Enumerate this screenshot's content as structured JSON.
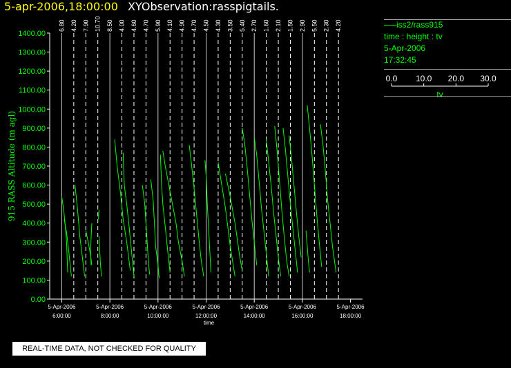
{
  "header": {
    "date_time": "5-apr-2006,18:00:00",
    "observation": "XYObservation:rasspigtails."
  },
  "legend": {
    "series_name": "iss2/rass915",
    "axes_desc": "time : height : tv",
    "date": "5-Apr-2006",
    "time": "17:32:45",
    "scale_ticks": [
      "0.0",
      "10.0",
      "20.0",
      "30.0"
    ],
    "scale_label": "tv"
  },
  "notice": "REAL-TIME DATA, NOT CHECKED FOR QUALITY",
  "colors": {
    "axis": "#ffffff",
    "trace": "#00ff00",
    "grid": "#ffffff",
    "label": "#00ff00"
  },
  "chart_data": {
    "type": "line",
    "ylabel": "915 RASS Altitude (m agl)",
    "xlabel": "time",
    "ylim": [
      0,
      1400
    ],
    "xlim_hours": [
      5.5,
      18.5
    ],
    "y_ticks": [
      "0.00",
      "100.00",
      "200.00",
      "300.00",
      "400.00",
      "500.00",
      "600.00",
      "700.00",
      "800.00",
      "900.00",
      "1000.00",
      "1100.00",
      "1200.00",
      "1300.00",
      "1400.00"
    ],
    "x_ticks": [
      {
        "hour": 6,
        "date": "5-Apr-2006",
        "time": "6:00:00"
      },
      {
        "hour": 8,
        "date": "5-Apr-2006",
        "time": "8:00:00"
      },
      {
        "hour": 10,
        "date": "5-Apr-2006",
        "time": "10:00:00"
      },
      {
        "hour": 12,
        "date": "5-Apr-2006",
        "time": "12:00:00"
      },
      {
        "hour": 14,
        "date": "5-Apr-2006",
        "time": "14:00:00"
      },
      {
        "hour": 16,
        "date": "5-Apr-2006",
        "time": "16:00:00"
      },
      {
        "hour": 18,
        "date": "5-Apr-2006",
        "time": "18:00:00"
      }
    ],
    "profiles": [
      {
        "hour": 6.0,
        "label": "6.80"
      },
      {
        "hour": 6.5,
        "label": "4.20"
      },
      {
        "hour": 7.0,
        "label": "7.90"
      },
      {
        "hour": 7.5,
        "label": "10.70"
      },
      {
        "hour": 8.0,
        "label": "8.50"
      },
      {
        "hour": 8.5,
        "label": "4.00"
      },
      {
        "hour": 9.0,
        "label": "4.60"
      },
      {
        "hour": 9.5,
        "label": "4.70"
      },
      {
        "hour": 10.0,
        "label": "5.90"
      },
      {
        "hour": 10.5,
        "label": "4.10"
      },
      {
        "hour": 11.0,
        "label": "4.90"
      },
      {
        "hour": 11.5,
        "label": "4.70"
      },
      {
        "hour": 12.0,
        "label": "4.50"
      },
      {
        "hour": 12.5,
        "label": "4.30"
      },
      {
        "hour": 13.0,
        "label": "3.50"
      },
      {
        "hour": 13.5,
        "label": "5.40"
      },
      {
        "hour": 14.0,
        "label": "2.70"
      },
      {
        "hour": 14.5,
        "label": "1.60"
      },
      {
        "hour": 15.0,
        "label": "2.10"
      },
      {
        "hour": 15.5,
        "label": "1.50"
      },
      {
        "hour": 16.0,
        "label": "2.90"
      },
      {
        "hour": 16.5,
        "label": "5.50"
      },
      {
        "hour": 17.0,
        "label": "2.30"
      },
      {
        "hour": 17.5,
        "label": "4.20"
      }
    ],
    "traces": [
      [
        [
          6.0,
          540
        ],
        [
          6.08,
          470
        ],
        [
          6.15,
          380
        ],
        [
          6.2,
          300
        ],
        [
          6.23,
          200
        ],
        [
          6.25,
          140
        ]
      ],
      [
        [
          6.1,
          420
        ],
        [
          6.2,
          350
        ],
        [
          6.3,
          240
        ],
        [
          6.4,
          120
        ]
      ],
      [
        [
          6.55,
          600
        ],
        [
          6.65,
          480
        ],
        [
          6.75,
          330
        ],
        [
          6.85,
          230
        ],
        [
          6.95,
          120
        ]
      ],
      [
        [
          7.0,
          360
        ],
        [
          7.1,
          300
        ],
        [
          7.2,
          230
        ],
        [
          7.25,
          180
        ]
      ],
      [
        [
          7.25,
          400
        ],
        [
          7.22,
          320
        ],
        [
          7.2,
          250
        ],
        [
          7.22,
          180
        ]
      ],
      [
        [
          7.55,
          330
        ],
        [
          7.6,
          200
        ],
        [
          7.65,
          120
        ]
      ],
      [
        [
          7.55,
          470
        ],
        [
          7.53,
          420
        ]
      ],
      [
        [
          8.2,
          840
        ],
        [
          8.3,
          700
        ],
        [
          8.45,
          550
        ],
        [
          8.55,
          420
        ],
        [
          8.7,
          300
        ],
        [
          8.85,
          150
        ]
      ],
      [
        [
          8.55,
          770
        ],
        [
          8.6,
          600
        ],
        [
          8.7,
          500
        ],
        [
          8.8,
          380
        ],
        [
          8.9,
          250
        ],
        [
          9.0,
          120
        ]
      ],
      [
        [
          9.35,
          600
        ],
        [
          9.45,
          500
        ],
        [
          9.5,
          400
        ],
        [
          9.55,
          300
        ],
        [
          9.6,
          200
        ],
        [
          9.65,
          130
        ]
      ],
      [
        [
          9.7,
          630
        ],
        [
          9.8,
          520
        ],
        [
          9.85,
          400
        ],
        [
          9.9,
          280
        ],
        [
          10.0,
          180
        ],
        [
          10.05,
          110
        ]
      ],
      [
        [
          10.1,
          760
        ],
        [
          10.15,
          600
        ],
        [
          10.2,
          500
        ],
        [
          10.3,
          380
        ],
        [
          10.4,
          260
        ],
        [
          10.5,
          140
        ]
      ],
      [
        [
          10.2,
          780
        ],
        [
          10.3,
          700
        ],
        [
          10.45,
          600
        ],
        [
          10.6,
          500
        ],
        [
          10.75,
          400
        ],
        [
          10.85,
          300
        ],
        [
          11.0,
          200
        ],
        [
          11.1,
          120
        ]
      ],
      [
        [
          11.3,
          810
        ],
        [
          11.4,
          700
        ],
        [
          11.5,
          580
        ],
        [
          11.6,
          450
        ],
        [
          11.7,
          320
        ],
        [
          11.8,
          200
        ],
        [
          11.9,
          120
        ]
      ],
      [
        [
          11.95,
          730
        ],
        [
          12.0,
          650
        ],
        [
          12.05,
          500
        ],
        [
          12.1,
          380
        ],
        [
          12.15,
          260
        ],
        [
          12.2,
          140
        ]
      ],
      [
        [
          12.5,
          720
        ],
        [
          12.6,
          640
        ],
        [
          12.7,
          560
        ],
        [
          12.8,
          480
        ],
        [
          12.9,
          380
        ],
        [
          13.0,
          280
        ],
        [
          13.1,
          200
        ],
        [
          13.2,
          120
        ]
      ],
      [
        [
          12.8,
          660
        ],
        [
          12.9,
          600
        ],
        [
          13.0,
          540
        ],
        [
          13.1,
          470
        ],
        [
          13.2,
          400
        ],
        [
          13.3,
          310
        ],
        [
          13.4,
          220
        ],
        [
          13.5,
          150
        ]
      ],
      [
        [
          13.5,
          900
        ],
        [
          13.6,
          820
        ],
        [
          13.7,
          700
        ],
        [
          13.8,
          560
        ],
        [
          13.9,
          420
        ],
        [
          14.0,
          300
        ],
        [
          14.1,
          180
        ]
      ],
      [
        [
          14.0,
          850
        ],
        [
          14.1,
          760
        ],
        [
          14.2,
          620
        ],
        [
          14.3,
          480
        ],
        [
          14.4,
          360
        ],
        [
          14.5,
          240
        ],
        [
          14.6,
          120
        ]
      ],
      [
        [
          14.5,
          840
        ],
        [
          14.6,
          720
        ],
        [
          14.7,
          600
        ],
        [
          14.8,
          460
        ],
        [
          14.9,
          340
        ],
        [
          15.0,
          220
        ],
        [
          15.1,
          120
        ]
      ],
      [
        [
          14.85,
          910
        ],
        [
          14.95,
          780
        ],
        [
          15.05,
          620
        ],
        [
          15.15,
          460
        ],
        [
          15.25,
          320
        ],
        [
          15.35,
          200
        ],
        [
          15.45,
          120
        ]
      ],
      [
        [
          15.2,
          900
        ],
        [
          15.3,
          780
        ],
        [
          15.4,
          640
        ],
        [
          15.5,
          500
        ],
        [
          15.6,
          380
        ],
        [
          15.7,
          260
        ],
        [
          15.8,
          140
        ]
      ],
      [
        [
          15.45,
          860
        ],
        [
          15.55,
          740
        ],
        [
          15.65,
          600
        ],
        [
          15.75,
          460
        ],
        [
          15.85,
          330
        ],
        [
          15.95,
          220
        ]
      ],
      [
        [
          16.2,
          1020
        ],
        [
          16.3,
          900
        ],
        [
          16.4,
          760
        ],
        [
          16.5,
          600
        ],
        [
          16.6,
          440
        ],
        [
          16.7,
          300
        ],
        [
          16.8,
          170
        ]
      ],
      [
        [
          16.75,
          920
        ],
        [
          16.85,
          820
        ],
        [
          16.95,
          680
        ],
        [
          17.05,
          520
        ],
        [
          17.15,
          400
        ],
        [
          17.25,
          280
        ],
        [
          17.4,
          140
        ]
      ],
      [
        [
          16.15,
          360
        ],
        [
          16.2,
          280
        ],
        [
          16.25,
          200
        ],
        [
          16.3,
          140
        ]
      ]
    ]
  }
}
